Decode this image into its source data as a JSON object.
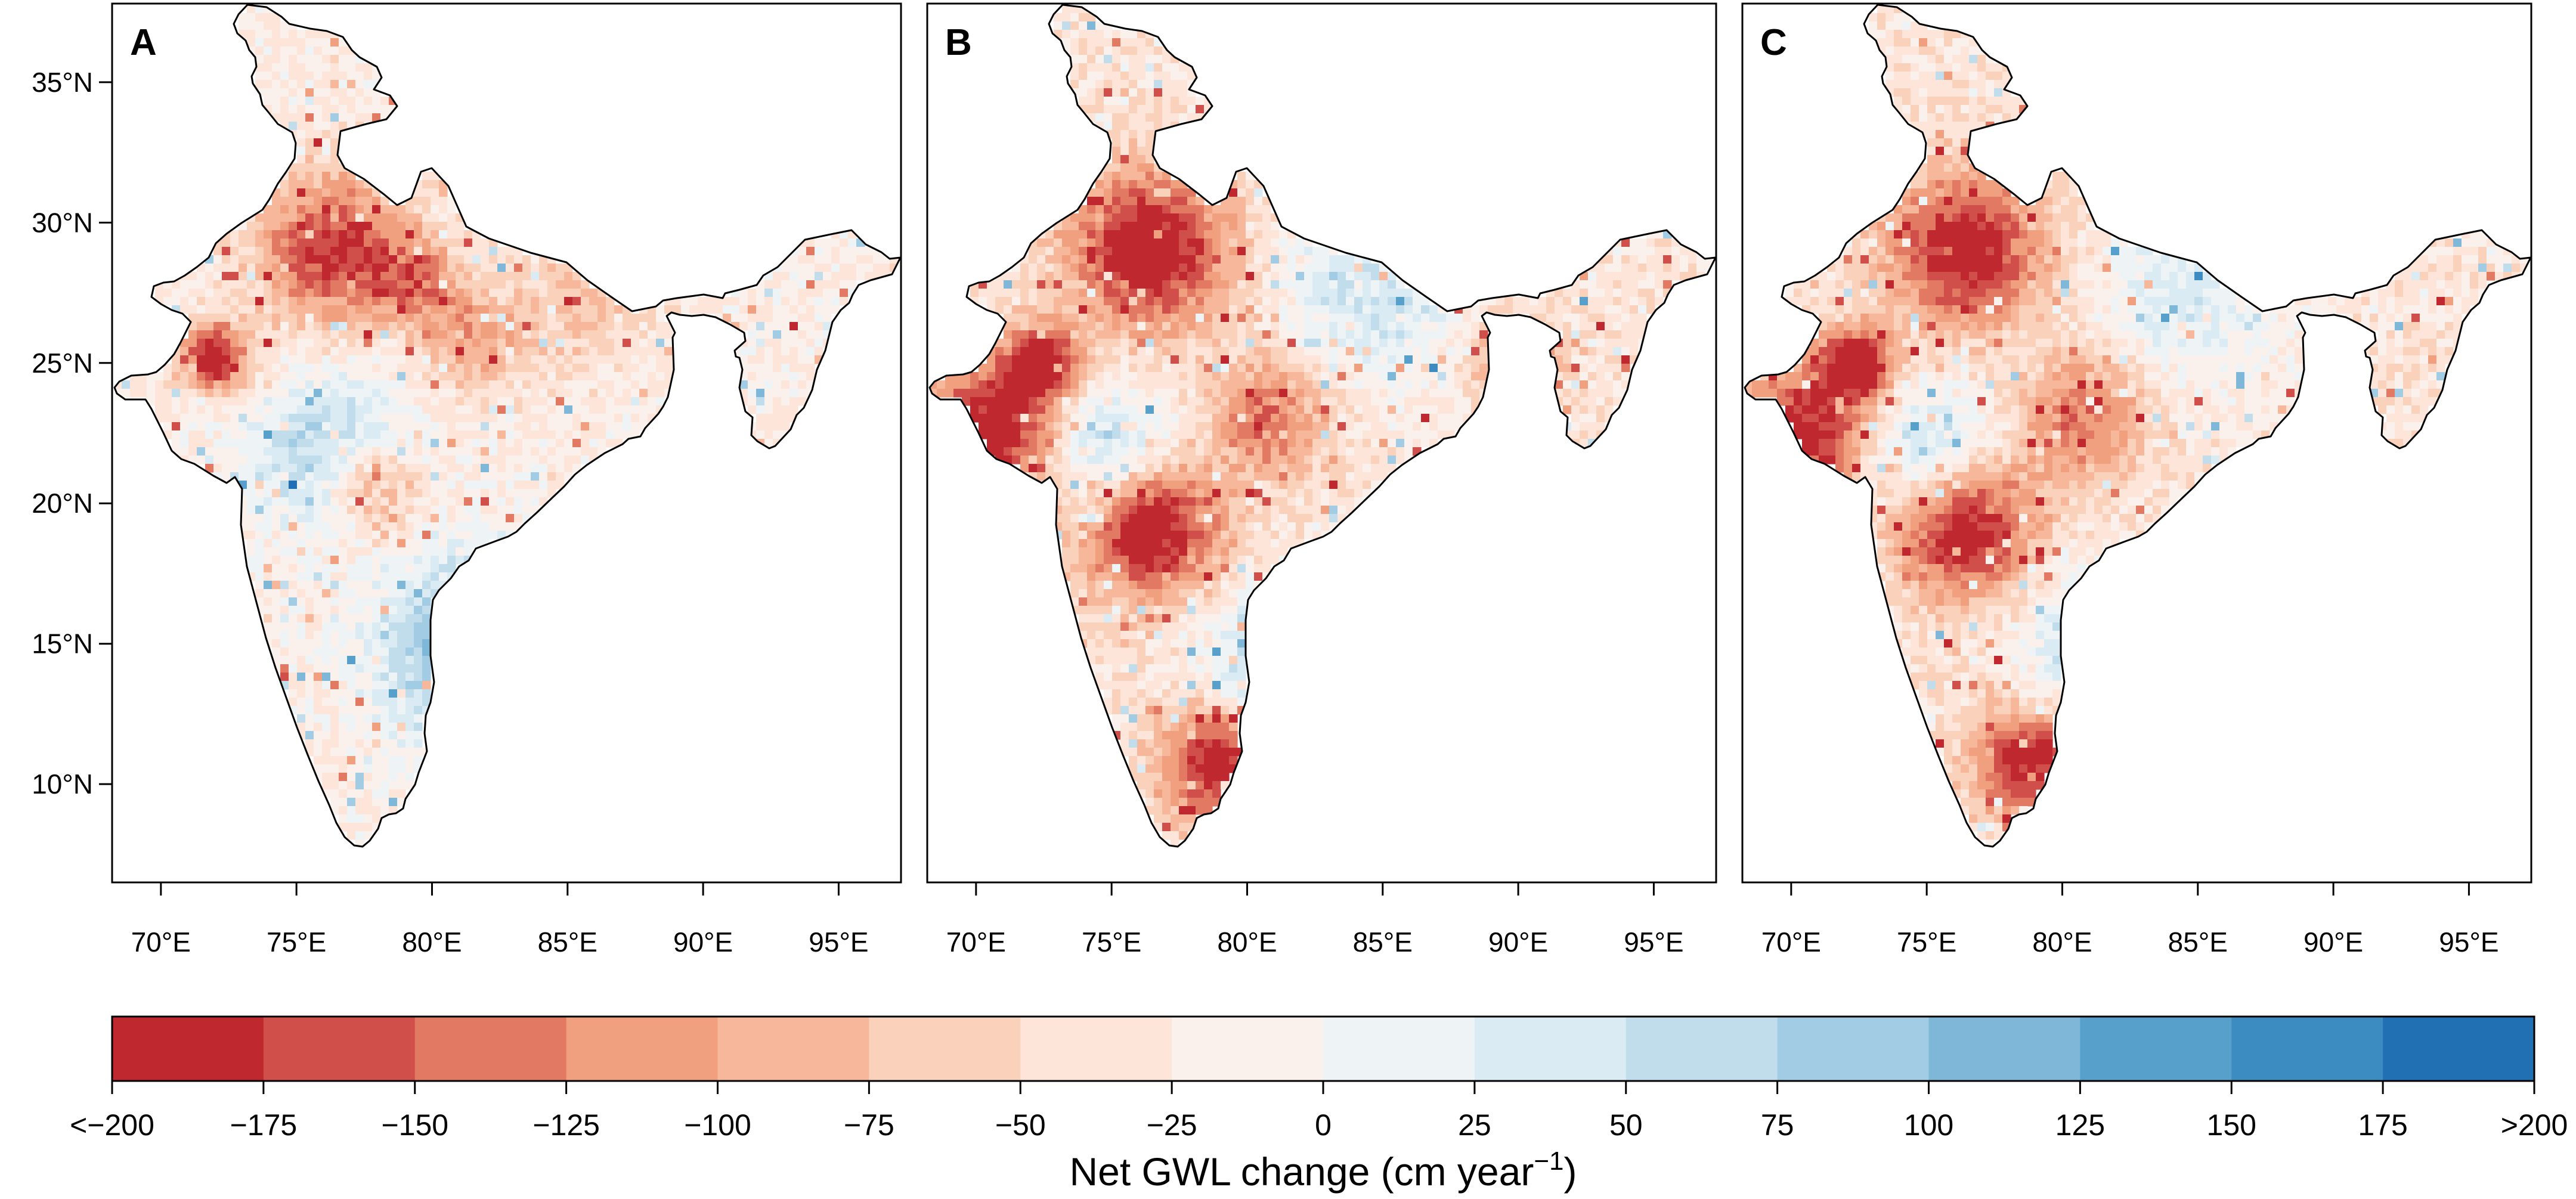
{
  "panels": [
    {
      "label": "A"
    },
    {
      "label": "B"
    },
    {
      "label": "C"
    }
  ],
  "map_axes": {
    "lon_ticks": [
      "70°E",
      "75°E",
      "80°E",
      "85°E",
      "90°E",
      "95°E"
    ],
    "lat_ticks": [
      "35°N",
      "30°N",
      "25°N",
      "20°N",
      "15°N",
      "10°N"
    ],
    "lon_values": [
      70,
      75,
      80,
      85,
      90,
      95
    ],
    "lat_values": [
      35,
      30,
      25,
      20,
      15,
      10
    ],
    "lon_range": [
      68.2,
      97.3
    ],
    "lat_range": [
      6.5,
      37.8
    ]
  },
  "colorbar": {
    "title_main": "Net GWL change (cm year",
    "title_sup": "−1",
    "title_close": ")",
    "tick_labels": [
      "<−200",
      "−175",
      "−150",
      "−125",
      "−100",
      "−75",
      "−50",
      "−25",
      "0",
      "25",
      "50",
      "75",
      "100",
      "125",
      "150",
      "175",
      ">200"
    ],
    "colors": [
      "#c0282f",
      "#d14f4a",
      "#e27a63",
      "#f0a07f",
      "#f6b79a",
      "#fad1bb",
      "#fde5d9",
      "#faf1ed",
      "#eef3f6",
      "#dbebf3",
      "#c1ddec",
      "#a2cce3",
      "#7eb7d8",
      "#58a0cc",
      "#3c8bc1",
      "#2170b4"
    ]
  }
}
